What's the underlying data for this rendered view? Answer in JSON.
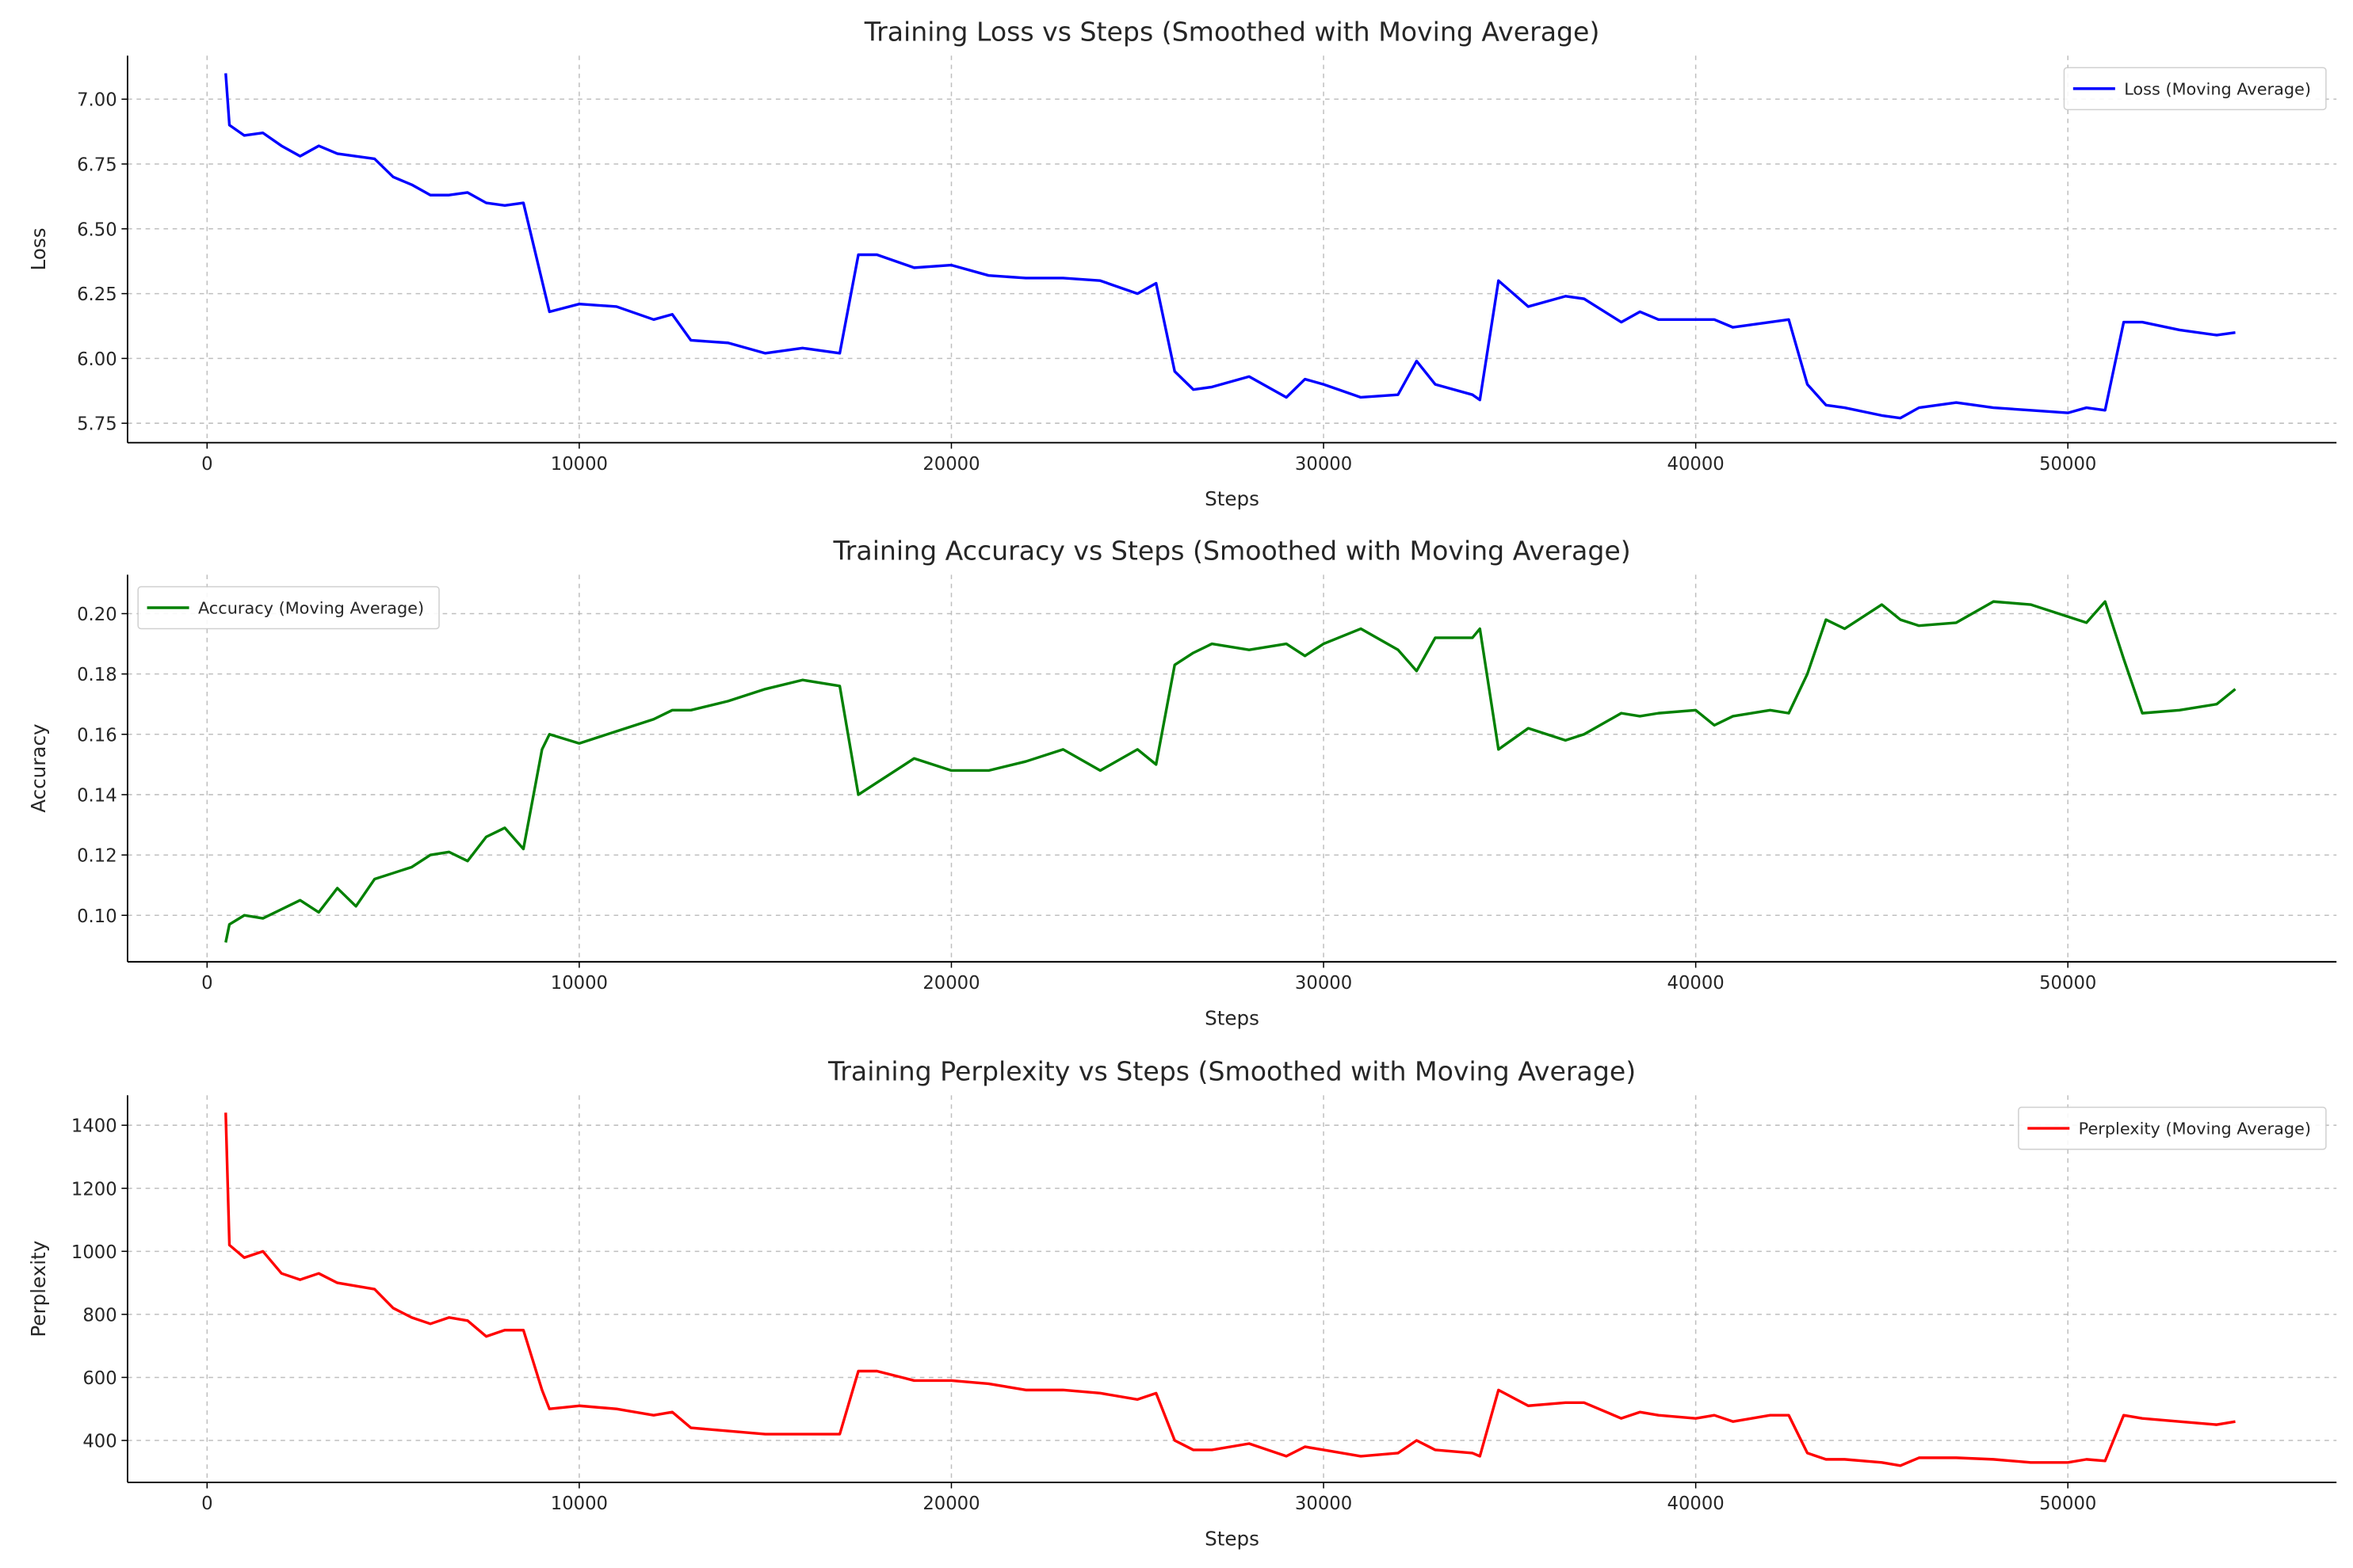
{
  "chart_data": [
    {
      "type": "line",
      "title": "Training Loss vs Steps (Smoothed with Moving Average)",
      "xlabel": "Steps",
      "ylabel": "Loss",
      "x": [
        500,
        600,
        1000,
        1500,
        2000,
        2500,
        3000,
        3500,
        4000,
        4500,
        5000,
        5500,
        6000,
        6500,
        7000,
        7500,
        8000,
        8500,
        9000,
        9200,
        10000,
        11000,
        12000,
        12500,
        13000,
        14000,
        15000,
        16000,
        17000,
        17500,
        18000,
        19000,
        20000,
        21000,
        22000,
        23000,
        24000,
        25000,
        25500,
        26000,
        26500,
        27000,
        28000,
        29000,
        29500,
        30000,
        31000,
        32000,
        32500,
        33000,
        34000,
        34200,
        34700,
        35500,
        36500,
        37000,
        38000,
        38500,
        39000,
        40000,
        40500,
        41000,
        42000,
        42500,
        43000,
        43500,
        44000,
        45000,
        45500,
        46000,
        47000,
        48000,
        49000,
        50000,
        50500,
        51000,
        51500,
        52000,
        53000,
        54000,
        54500
      ],
      "series": [
        {
          "name": "Loss (Moving Average)",
          "color": "#0000ff",
          "values": [
            7.1,
            6.9,
            6.86,
            6.87,
            6.82,
            6.78,
            6.82,
            6.79,
            6.78,
            6.77,
            6.7,
            6.67,
            6.63,
            6.63,
            6.64,
            6.6,
            6.59,
            6.6,
            6.3,
            6.18,
            6.21,
            6.2,
            6.15,
            6.17,
            6.07,
            6.06,
            6.02,
            6.04,
            6.02,
            6.4,
            6.4,
            6.35,
            6.36,
            6.32,
            6.31,
            6.31,
            6.3,
            6.25,
            6.29,
            5.95,
            5.88,
            5.89,
            5.93,
            5.85,
            5.92,
            5.9,
            5.85,
            5.86,
            5.99,
            5.9,
            5.86,
            5.84,
            6.3,
            6.2,
            6.24,
            6.23,
            6.14,
            6.18,
            6.15,
            6.15,
            6.15,
            6.12,
            6.14,
            6.15,
            5.9,
            5.82,
            5.81,
            5.78,
            5.77,
            5.81,
            5.83,
            5.81,
            5.8,
            5.79,
            5.81,
            5.8,
            6.14,
            6.14,
            6.11,
            6.09,
            6.1
          ]
        }
      ],
      "xlim": [
        -2137,
        57218
      ],
      "ylim": [
        5.675,
        7.168
      ],
      "xticks": [
        0,
        10000,
        20000,
        30000,
        40000,
        50000
      ],
      "yticks": [
        5.75,
        {
          "value": 6,
          "label": "6.00"
        },
        6.25,
        {
          "value": 6.5,
          "label": "6.50"
        },
        6.75,
        {
          "value": 7,
          "label": "7.00"
        }
      ],
      "grid": true,
      "legend": "upper right"
    },
    {
      "type": "line",
      "title": "Training Accuracy vs Steps (Smoothed with Moving Average)",
      "xlabel": "Steps",
      "ylabel": "Accuracy",
      "x": [
        500,
        600,
        1000,
        1500,
        2000,
        2500,
        3000,
        3500,
        4000,
        4500,
        5000,
        5500,
        6000,
        6500,
        7000,
        7500,
        8000,
        8500,
        9000,
        9200,
        10000,
        11000,
        12000,
        12500,
        13000,
        14000,
        15000,
        16000,
        17000,
        17500,
        18000,
        19000,
        20000,
        21000,
        22000,
        23000,
        24000,
        25000,
        25500,
        26000,
        26500,
        27000,
        28000,
        29000,
        29500,
        30000,
        31000,
        32000,
        32500,
        33000,
        34000,
        34200,
        34700,
        35500,
        36500,
        37000,
        38000,
        38500,
        39000,
        40000,
        40500,
        41000,
        42000,
        42500,
        43000,
        43500,
        44000,
        45000,
        45500,
        46000,
        47000,
        48000,
        49000,
        50000,
        50500,
        51000,
        51500,
        52000,
        53000,
        54000,
        54500
      ],
      "series": [
        {
          "name": "Accuracy (Moving Average)",
          "color": "#008000",
          "values": [
            0.091,
            0.097,
            0.1,
            0.099,
            0.102,
            0.105,
            0.101,
            0.109,
            0.103,
            0.112,
            0.114,
            0.116,
            0.12,
            0.121,
            0.118,
            0.126,
            0.129,
            0.122,
            0.155,
            0.16,
            0.157,
            0.161,
            0.165,
            0.168,
            0.168,
            0.171,
            0.175,
            0.178,
            0.176,
            0.14,
            0.144,
            0.152,
            0.148,
            0.148,
            0.151,
            0.155,
            0.148,
            0.155,
            0.15,
            0.183,
            0.187,
            0.19,
            0.188,
            0.19,
            0.186,
            0.19,
            0.195,
            0.188,
            0.181,
            0.192,
            0.192,
            0.195,
            0.155,
            0.162,
            0.158,
            0.16,
            0.167,
            0.166,
            0.167,
            0.168,
            0.163,
            0.166,
            0.168,
            0.167,
            0.18,
            0.198,
            0.195,
            0.203,
            0.198,
            0.196,
            0.197,
            0.204,
            0.203,
            0.199,
            0.197,
            0.204,
            0.185,
            0.167,
            0.168,
            0.17,
            0.175
          ]
        }
      ],
      "xlim": [
        -2137,
        57218
      ],
      "ylim": [
        0.0846,
        0.2129
      ],
      "xticks": [
        0,
        10000,
        20000,
        30000,
        40000,
        50000
      ],
      "yticks": [
        {
          "value": 0.1,
          "label": "0.10"
        },
        0.12,
        0.14,
        0.16,
        0.18,
        {
          "value": 0.2,
          "label": "0.20"
        }
      ],
      "grid": true,
      "legend": "upper left"
    },
    {
      "type": "line",
      "title": "Training Perplexity vs Steps (Smoothed with Moving Average)",
      "xlabel": "Steps",
      "ylabel": "Perplexity",
      "x": [
        500,
        600,
        1000,
        1500,
        2000,
        2500,
        3000,
        3500,
        4000,
        4500,
        5000,
        5500,
        6000,
        6500,
        7000,
        7500,
        8000,
        8500,
        9000,
        9200,
        10000,
        11000,
        12000,
        12500,
        13000,
        14000,
        15000,
        16000,
        17000,
        17500,
        18000,
        19000,
        20000,
        21000,
        22000,
        23000,
        24000,
        25000,
        25500,
        26000,
        26500,
        27000,
        28000,
        29000,
        29500,
        30000,
        31000,
        32000,
        32500,
        33000,
        34000,
        34200,
        34700,
        35500,
        36500,
        37000,
        38000,
        38500,
        39000,
        40000,
        40500,
        41000,
        42000,
        42500,
        43000,
        43500,
        44000,
        45000,
        45500,
        46000,
        47000,
        48000,
        49000,
        50000,
        50500,
        51000,
        51500,
        52000,
        53000,
        54000,
        54500
      ],
      "series": [
        {
          "name": "Perplexity (Moving Average)",
          "color": "#ff0000",
          "values": [
            1440,
            1020,
            980,
            1000,
            930,
            910,
            930,
            900,
            890,
            880,
            820,
            790,
            770,
            790,
            780,
            730,
            750,
            750,
            560,
            500,
            510,
            500,
            480,
            490,
            440,
            430,
            420,
            420,
            420,
            620,
            620,
            590,
            590,
            580,
            560,
            560,
            550,
            530,
            550,
            400,
            370,
            370,
            390,
            350,
            380,
            370,
            350,
            360,
            400,
            370,
            360,
            350,
            560,
            510,
            520,
            520,
            470,
            490,
            480,
            470,
            480,
            460,
            480,
            480,
            360,
            340,
            340,
            330,
            320,
            345,
            345,
            340,
            330,
            330,
            340,
            335,
            480,
            470,
            460,
            450,
            460
          ]
        }
      ],
      "xlim": [
        -2137,
        57218
      ],
      "ylim": [
        267,
        1495
      ],
      "xticks": [
        0,
        10000,
        20000,
        30000,
        40000,
        50000
      ],
      "yticks": [
        400,
        600,
        800,
        1000,
        1200,
        1400
      ],
      "grid": true,
      "legend": "upper right"
    }
  ]
}
